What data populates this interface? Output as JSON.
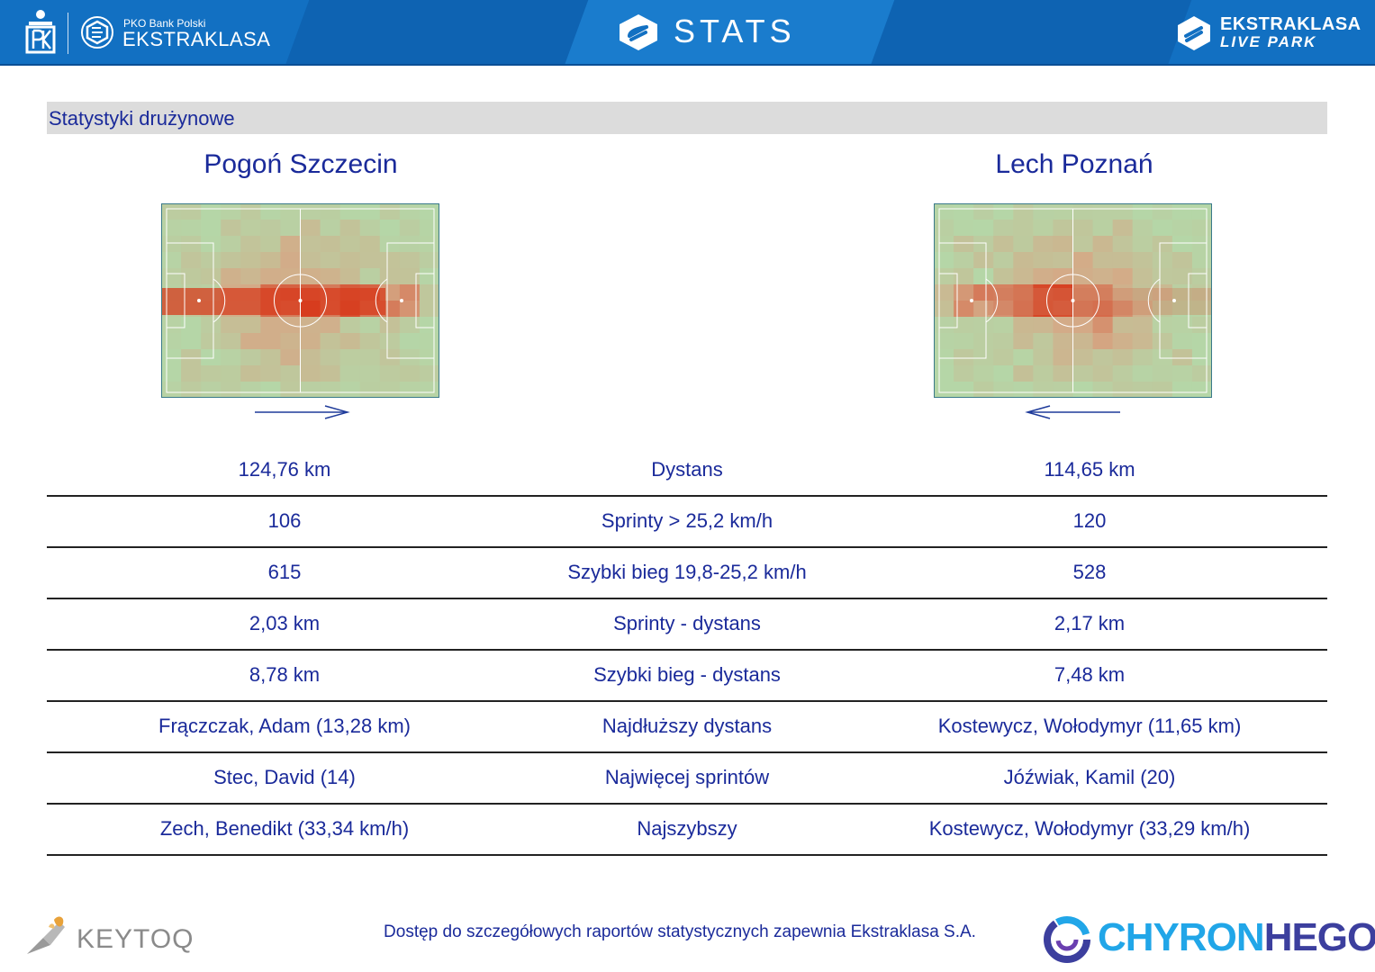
{
  "header": {
    "pko_small": "PKO Bank Polski",
    "league_name": "EKSTRAKLASA",
    "app_title": "STATS",
    "livepark_line1": "EKSTRAKLASA",
    "livepark_line2": "LIVE PARK"
  },
  "section_title": "Statystyki drużynowe",
  "teams": {
    "left": {
      "name": "Pogoń Szczecin",
      "attack_direction": "right"
    },
    "right": {
      "name": "Lech Poznań",
      "attack_direction": "left"
    }
  },
  "stats": [
    {
      "left": "124,76 km",
      "label": "Dystans",
      "right": "114,65 km"
    },
    {
      "left": "106",
      "label": "Sprinty > 25,2 km/h",
      "right": "120"
    },
    {
      "left": "615",
      "label": "Szybki bieg 19,8-25,2 km/h",
      "right": "528"
    },
    {
      "left": "2,03 km",
      "label": "Sprinty - dystans",
      "right": "2,17 km"
    },
    {
      "left": "8,78 km",
      "label": "Szybki bieg - dystans",
      "right": "7,48 km"
    },
    {
      "left": "Frączczak, Adam (13,28 km)",
      "label": "Najdłuższy dystans",
      "right": "Kostewycz, Wołodymyr (11,65 km)"
    },
    {
      "left": "Stec, David (14)",
      "label": "Najwięcej sprintów",
      "right": "Jóźwiak, Kamil (20)"
    },
    {
      "left": "Zech, Benedikt (33,34 km/h)",
      "label": "Najszybszy",
      "right": "Kostewycz, Wołodymyr (33,29 km/h)"
    }
  ],
  "footer": {
    "keytoq": "KEYTOQ",
    "note": "Dostęp do szczegółowych raportów statystycznych zapewnia Ekstraklasa S.A.",
    "chyron_a": "CHYRON",
    "chyron_b": "HEGO"
  },
  "colors": {
    "header_blue": "#1270c2",
    "text_navy": "#1a2a9a",
    "pitch_green": "#b5d6a7",
    "heat_red": "#d93a1c"
  },
  "icons": [
    "pko-bank-logo-icon",
    "ekstraklasa-logo-icon",
    "stats-logo-icon",
    "livepark-logo-icon",
    "keytoq-logo-icon",
    "chyronhego-logo-icon",
    "arrow-right-icon",
    "arrow-left-icon"
  ]
}
